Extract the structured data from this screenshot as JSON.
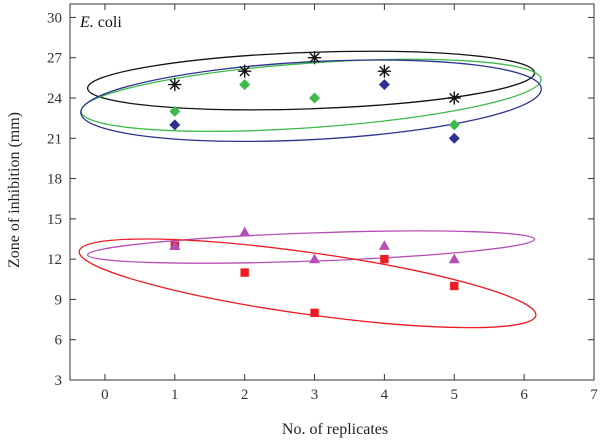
{
  "chart_data": {
    "type": "scatter",
    "title": "",
    "panel_label": {
      "italic": "E.",
      "rest": " coli"
    },
    "xlabel": "No. of replicates",
    "ylabel": "Zone of inhibition (mm)",
    "xlim": [
      -0.5,
      7
    ],
    "ylim": [
      3,
      31
    ],
    "xticks": [
      0,
      1,
      2,
      3,
      4,
      5,
      6,
      7
    ],
    "yticks": [
      3,
      6,
      9,
      12,
      15,
      18,
      21,
      24,
      27,
      30
    ],
    "grid": false,
    "legend": "none",
    "series": [
      {
        "marker": "asterisk",
        "color": "#111111",
        "x": [
          1,
          2,
          3,
          4,
          5
        ],
        "y": [
          25,
          26,
          27,
          26,
          24
        ]
      },
      {
        "marker": "diamond",
        "color": "#2e3192",
        "x": [
          1,
          4,
          5
        ],
        "y": [
          22,
          25,
          21
        ]
      },
      {
        "marker": "diamond",
        "color": "#3dbb4a",
        "x": [
          1,
          2,
          3,
          5
        ],
        "y": [
          23,
          25,
          24,
          22
        ]
      },
      {
        "marker": "square",
        "color": "#ed1c24",
        "x": [
          1,
          2,
          3,
          4,
          5
        ],
        "y": [
          13,
          11,
          8,
          12,
          10
        ]
      },
      {
        "marker": "triangle",
        "color": "#b54fb5",
        "x": [
          1,
          2,
          3,
          4,
          5
        ],
        "y": [
          13,
          14,
          12,
          13,
          12
        ]
      }
    ],
    "ellipses": [
      {
        "color": "#111111",
        "cx": 2.95,
        "cy": 25.3,
        "rx": 3.2,
        "ry": 2.1,
        "angle_deg": 2
      },
      {
        "color": "#3dbb4a",
        "cx": 2.95,
        "cy": 24.2,
        "rx": 3.3,
        "ry": 2.4,
        "angle_deg": 4
      },
      {
        "color": "#2e3192",
        "cx": 2.95,
        "cy": 23.8,
        "rx": 3.3,
        "ry": 2.9,
        "angle_deg": 3
      },
      {
        "color": "#b54fb5",
        "cx": 2.95,
        "cy": 12.9,
        "rx": 3.2,
        "ry": 1.05,
        "angle_deg": 2
      },
      {
        "color": "#ed1c24",
        "cx": 2.9,
        "cy": 10.2,
        "rx": 3.3,
        "ry": 2.3,
        "angle_deg": -8
      }
    ]
  }
}
